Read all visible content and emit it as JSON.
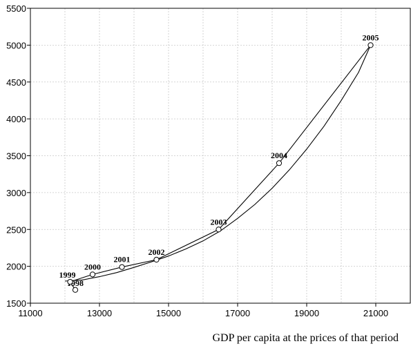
{
  "chart_data": {
    "type": "scatter",
    "title": "",
    "xlabel": "GDP per capita at the prices of that period",
    "ylabel": "",
    "xlim": [
      11000,
      22000
    ],
    "ylim": [
      1500,
      5500
    ],
    "x_ticks": [
      11000,
      13000,
      15000,
      17000,
      19000,
      21000
    ],
    "y_ticks": [
      1500,
      2000,
      2500,
      3000,
      3500,
      4000,
      4500,
      5000,
      5500
    ],
    "grid": true,
    "series": [
      {
        "type": "scatter-line",
        "points": [
          {
            "label": "1998",
            "x": 12300,
            "y": 1680
          },
          {
            "label": "1999",
            "x": 12150,
            "y": 1790
          },
          {
            "label": "2000",
            "x": 12800,
            "y": 1890
          },
          {
            "label": "2001",
            "x": 13650,
            "y": 1990
          },
          {
            "label": "2002",
            "x": 14650,
            "y": 2090
          },
          {
            "label": "2003",
            "x": 16450,
            "y": 2500
          },
          {
            "label": "2004",
            "x": 18200,
            "y": 3400
          },
          {
            "label": "2005",
            "x": 20850,
            "y": 5000
          }
        ]
      },
      {
        "type": "fitted-curve",
        "points": [
          {
            "x": 12000,
            "y": 1800
          },
          {
            "x": 12500,
            "y": 1815
          },
          {
            "x": 13000,
            "y": 1860
          },
          {
            "x": 13500,
            "y": 1915
          },
          {
            "x": 14000,
            "y": 1985
          },
          {
            "x": 14500,
            "y": 2060
          },
          {
            "x": 15000,
            "y": 2140
          },
          {
            "x": 15500,
            "y": 2235
          },
          {
            "x": 16000,
            "y": 2345
          },
          {
            "x": 16500,
            "y": 2480
          },
          {
            "x": 17000,
            "y": 2650
          },
          {
            "x": 17500,
            "y": 2840
          },
          {
            "x": 18000,
            "y": 3060
          },
          {
            "x": 18500,
            "y": 3310
          },
          {
            "x": 19000,
            "y": 3590
          },
          {
            "x": 19500,
            "y": 3900
          },
          {
            "x": 20000,
            "y": 4250
          },
          {
            "x": 20500,
            "y": 4630
          },
          {
            "x": 20850,
            "y": 5000
          }
        ]
      }
    ]
  }
}
